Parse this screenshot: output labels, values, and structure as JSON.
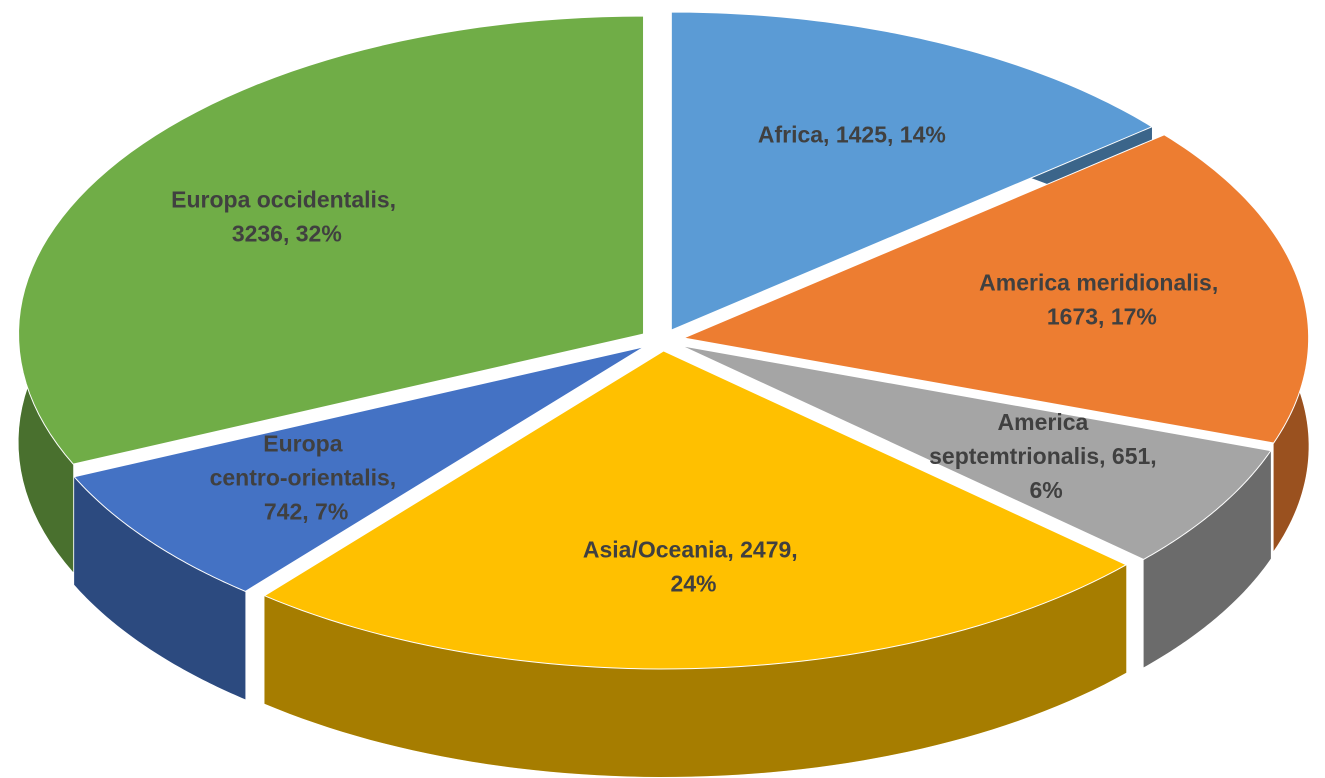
{
  "chart_data": {
    "type": "pie",
    "categories": [
      "Africa",
      "America meridionalis",
      "America septemtrionalis",
      "Asia/Oceania",
      "Europa centro-orientalis",
      "Europa occidentalis"
    ],
    "values": [
      1425,
      1673,
      651,
      2479,
      742,
      3236
    ],
    "value_labels": [
      "Africa, 1425, 14%",
      "America meridionalis, 1673, 17%",
      "America septemtrionalis, 651, 6%",
      "Asia/Oceania, 2479, 24%",
      "Europa centro-orientalis, 742, 7%",
      "Europa occidentalis, 3236, 32%"
    ],
    "colors": [
      "#5b9bd5",
      "#ed7d31",
      "#a5a5a5",
      "#ffc000",
      "#4472c4",
      "#70ad47"
    ]
  }
}
